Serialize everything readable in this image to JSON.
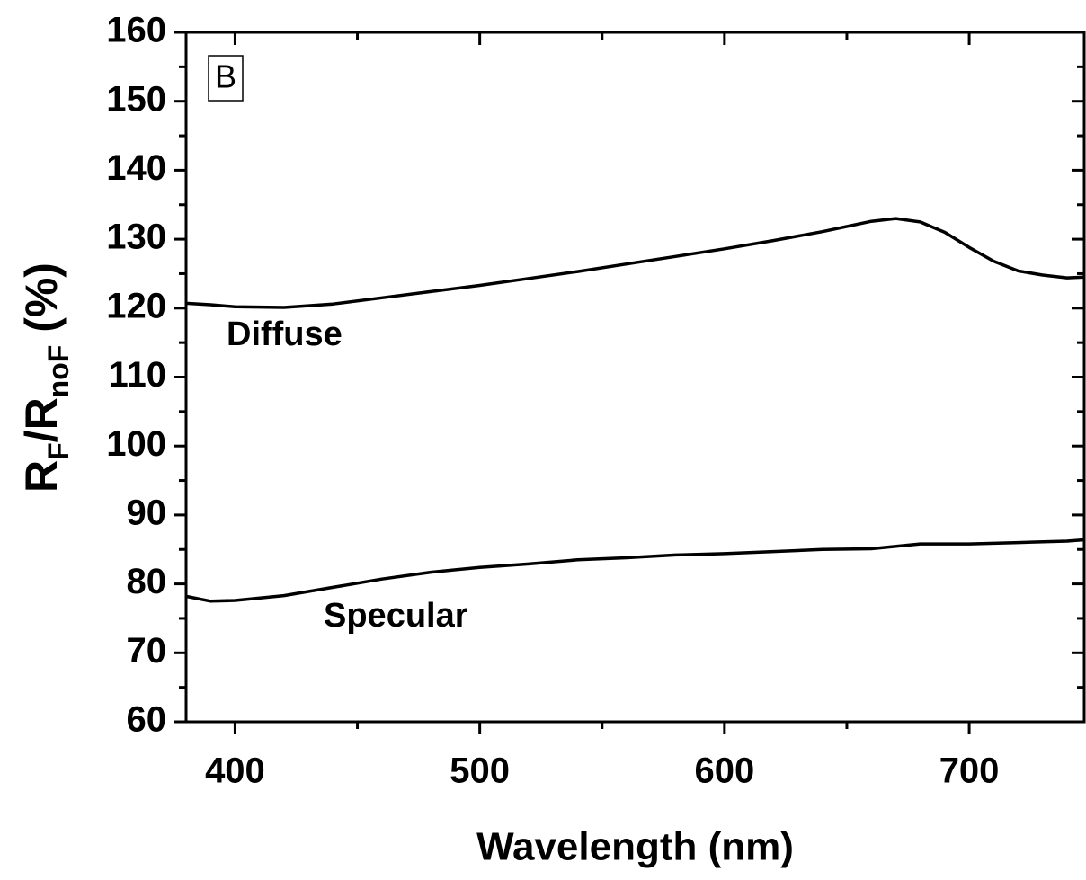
{
  "chart_data": {
    "type": "line",
    "xlabel": "Wavelength (nm)",
    "ylabel_parts": [
      {
        "text": "R"
      },
      {
        "text": "F",
        "sub": true
      },
      {
        "text": "/R"
      },
      {
        "text": "noF",
        "sub": true
      },
      {
        "text": " (%)"
      }
    ],
    "panel_label": "B",
    "annotations": [
      "Diffuse",
      "Specular"
    ],
    "xlim": [
      380,
      747
    ],
    "xticks": [
      400,
      500,
      600,
      700
    ],
    "xminorticks": [
      450,
      550,
      650
    ],
    "ylim": [
      60,
      160
    ],
    "yticks": [
      60,
      70,
      80,
      90,
      100,
      110,
      120,
      130,
      140,
      150,
      160
    ],
    "yminorticks": [
      65,
      75,
      85,
      95,
      105,
      115,
      125,
      135,
      145,
      155
    ],
    "series": [
      {
        "color": "#000000",
        "x": [
          380,
          390,
          400,
          420,
          440,
          460,
          480,
          500,
          520,
          540,
          560,
          580,
          600,
          620,
          640,
          660,
          670,
          680,
          690,
          700,
          710,
          720,
          730,
          740,
          747
        ],
        "values": [
          120.7,
          120.5,
          120.2,
          120.1,
          120.6,
          121.5,
          122.4,
          123.3,
          124.3,
          125.3,
          126.4,
          127.5,
          128.6,
          129.8,
          131.1,
          132.6,
          133.0,
          132.5,
          131.0,
          128.8,
          126.8,
          125.4,
          124.8,
          124.4,
          124.5
        ]
      },
      {
        "color": "#000000",
        "x": [
          380,
          390,
          400,
          420,
          440,
          460,
          480,
          500,
          520,
          540,
          560,
          580,
          600,
          620,
          640,
          660,
          680,
          700,
          720,
          740,
          747
        ],
        "values": [
          78.2,
          77.5,
          77.6,
          78.3,
          79.5,
          80.7,
          81.7,
          82.4,
          82.9,
          83.5,
          83.8,
          84.2,
          84.4,
          84.7,
          85.0,
          85.1,
          85.8,
          85.8,
          86.0,
          86.2,
          86.4
        ]
      }
    ]
  }
}
